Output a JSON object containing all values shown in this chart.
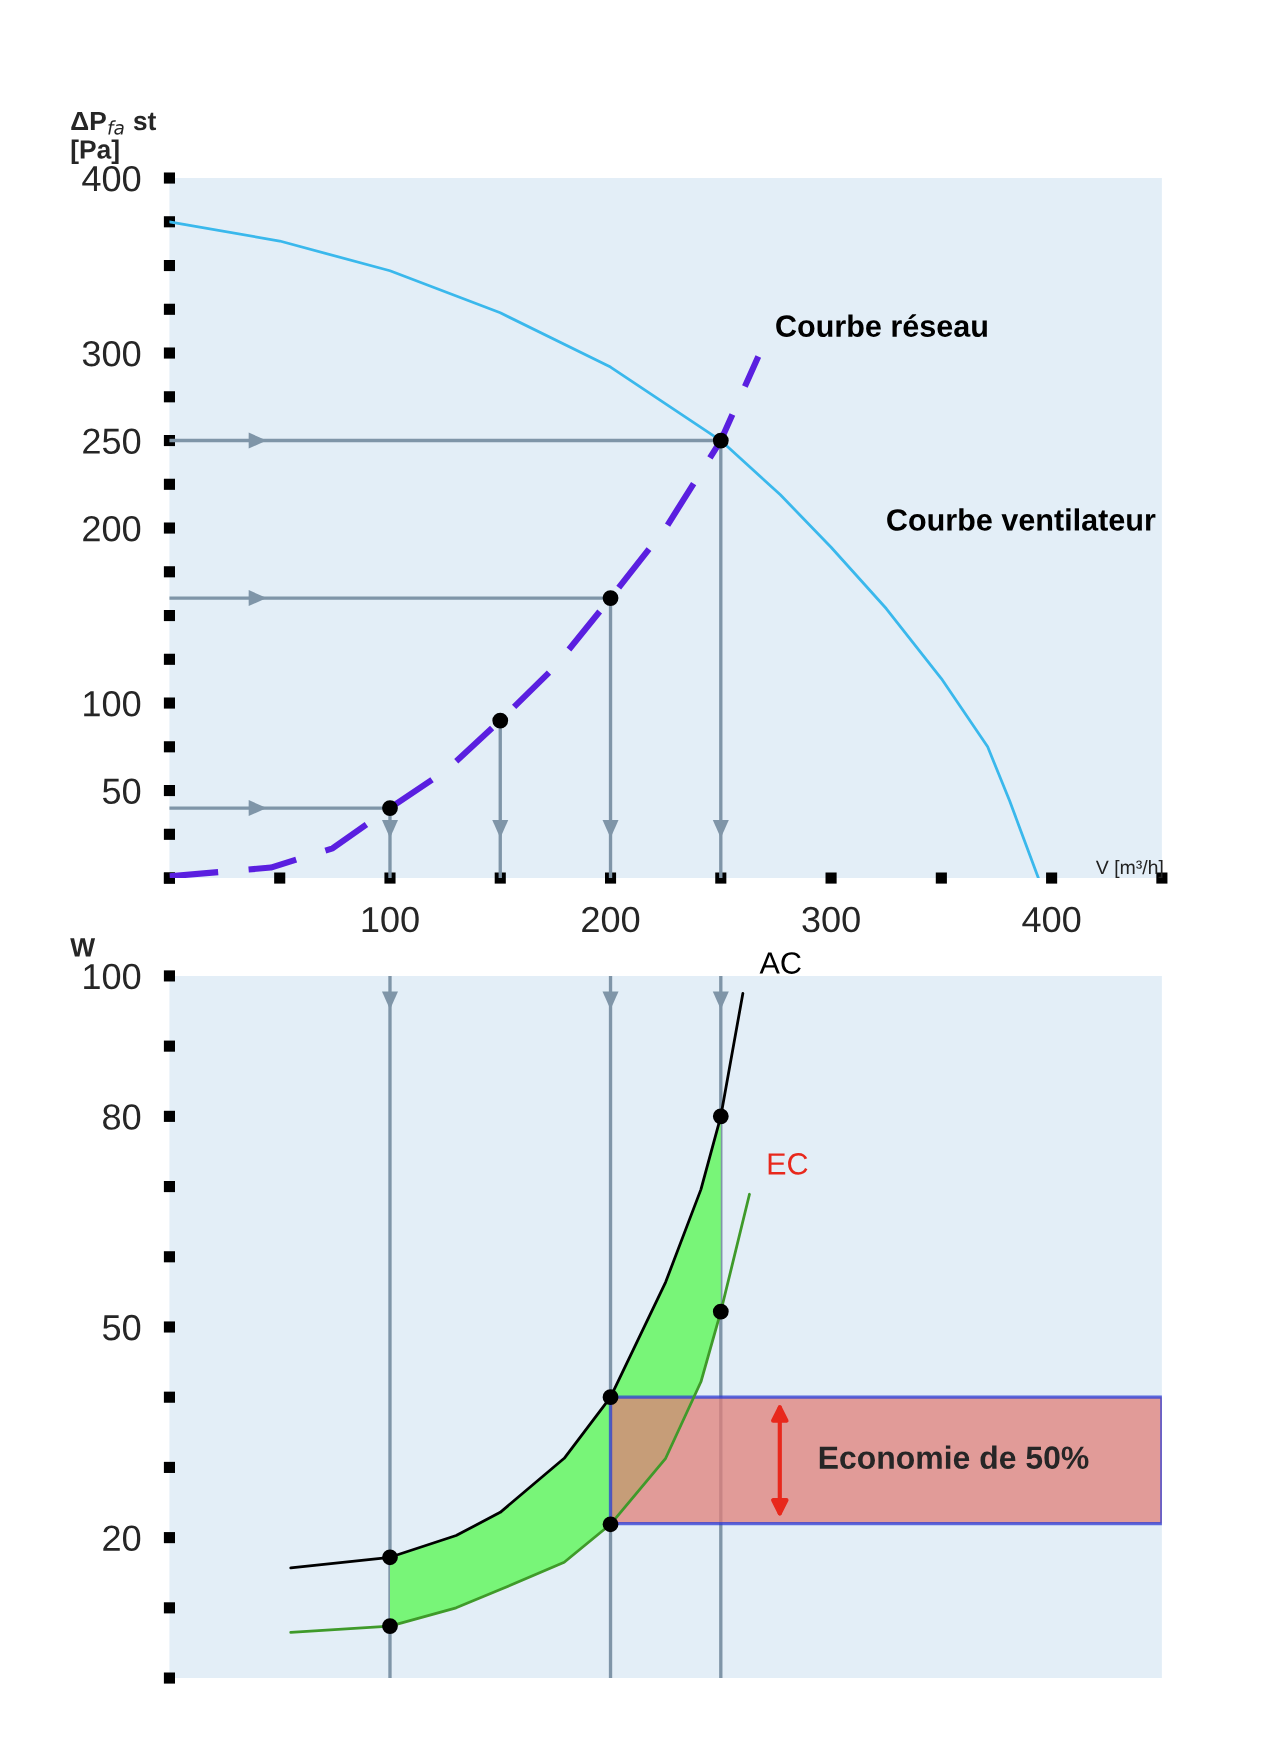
{
  "chart_data": [
    {
      "type": "line",
      "ylabel": "ΔP$_{fa}$ st\n[Pa]",
      "xlabel": "V [m³/h]",
      "xlim": [
        0,
        450
      ],
      "ylim": [
        0,
        400
      ],
      "xticks": [
        {
          "value": 0,
          "label": null
        },
        {
          "value": 50,
          "label": null
        },
        100,
        {
          "value": 150,
          "label": null
        },
        200,
        {
          "value": 250,
          "label": null
        },
        300,
        {
          "value": 350,
          "label": null
        },
        400,
        {
          "value": 450,
          "label": null
        }
      ],
      "yticks": [
        {
          "value": 0,
          "label": null
        },
        {
          "value": 25,
          "label": null
        },
        50,
        {
          "value": 75,
          "label": null
        },
        100,
        {
          "value": 125,
          "label": null
        },
        {
          "value": 150,
          "label": null
        },
        {
          "value": 175,
          "label": null
        },
        200,
        {
          "value": 225,
          "label": null
        },
        250,
        {
          "value": 275,
          "label": null
        },
        300,
        {
          "value": 325,
          "label": null
        },
        {
          "value": 350,
          "label": null
        },
        {
          "value": 375,
          "label": null
        },
        400
      ],
      "grid": false,
      "legend": false,
      "series": [
        {
          "name": "Courbe ventilateur",
          "color": "#3ab8ec",
          "x": [
            0,
            50,
            100,
            150,
            200,
            250,
            277,
            300,
            325,
            350,
            371,
            381,
            394
          ],
          "values": [
            375,
            364,
            347,
            323,
            292,
            250,
            219,
            189,
            154,
            114,
            75,
            44,
            0
          ]
        },
        {
          "name": "Courbe réseau",
          "color": "#5a1fe0",
          "line_style": "dashed",
          "x": [
            0,
            46,
            74,
            100,
            126,
            150,
            175,
            200,
            225,
            250,
            267
          ],
          "values": [
            1,
            6,
            17,
            40,
            62,
            90,
            121,
            160,
            200,
            250,
            298
          ]
        },
        {
          "color": "#7f95a8",
          "x": [
            0,
            250,
            250
          ],
          "values": [
            250,
            250,
            0
          ]
        },
        {
          "color": "#7f95a8",
          "x": [
            0,
            200,
            200
          ],
          "values": [
            160,
            160,
            0
          ]
        },
        {
          "color": "#7f95a8",
          "x": [
            0,
            100,
            100
          ],
          "values": [
            40,
            40,
            0
          ]
        },
        {
          "color": "#7f95a8",
          "x": [
            150,
            150
          ],
          "values": [
            90,
            0
          ]
        },
        {
          "type": "scatter",
          "color": "#000000",
          "marker": "circle",
          "x": [
            100,
            150,
            200,
            250
          ],
          "values": [
            40,
            90,
            160,
            250
          ]
        }
      ]
    },
    {
      "type": "line",
      "ylabel": "W",
      "xlim": [
        0,
        450
      ],
      "ylim": [
        0,
        100
      ],
      "tick_labels": "y",
      "yticks": [
        {
          "value": 0,
          "label": null
        },
        {
          "value": 10,
          "label": null
        },
        20,
        {
          "value": 30,
          "label": null
        },
        {
          "value": 40,
          "label": null
        },
        50,
        {
          "value": 60,
          "label": null
        },
        {
          "value": 70,
          "label": null
        },
        80,
        {
          "value": 90,
          "label": null
        },
        100
      ],
      "grid": false,
      "legend": false,
      "ref_lines": [
        {
          "axis": "x",
          "value": 100,
          "color": "#7f95a8"
        },
        {
          "axis": "x",
          "value": 200,
          "color": "#7f95a8"
        },
        {
          "axis": "x",
          "value": 250,
          "color": "#7f95a8"
        }
      ],
      "bands": [
        {
          "axis": "y",
          "from": 22,
          "to": 40,
          "color": "#e07f78"
        }
      ],
      "annotations": [
        "Economie de 50%"
      ],
      "series": [
        {
          "name": "AC",
          "color": "#000000",
          "x": [
            55,
            100,
            130,
            150,
            179,
            200,
            225,
            241,
            250,
            260
          ],
          "values": [
            15.7,
            17.2,
            20.3,
            23.6,
            31.3,
            40,
            56.4,
            69.6,
            80,
            97.5
          ]
        },
        {
          "name": "EC",
          "color": "#3f9a2a",
          "x": [
            55,
            100,
            130,
            150,
            179,
            200,
            225,
            241,
            250,
            263
          ],
          "values": [
            6.5,
            7.4,
            10,
            12.6,
            16.5,
            21.9,
            31.3,
            42.2,
            52.2,
            68.9
          ]
        },
        {
          "type": "scatter",
          "color": "#000000",
          "marker": "circle",
          "x": [
            100,
            100,
            200,
            200,
            250,
            250
          ],
          "values": [
            17.2,
            7.4,
            40,
            21.9,
            80,
            52.2
          ]
        }
      ]
    }
  ]
}
